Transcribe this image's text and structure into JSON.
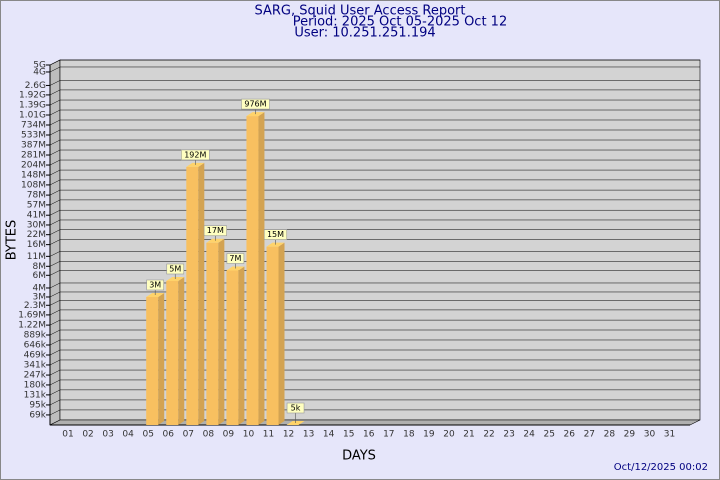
{
  "chart_data": {
    "type": "bar3d",
    "title": "SARG, Squid User Access Report",
    "subtitle": "Period: 2025 Oct 05-2025 Oct 12",
    "user": "User: 10.251.251.194",
    "xlabel": "DAYS",
    "ylabel": "BYTES",
    "footer": "Oct/12/2025 00:02",
    "categories": [
      "01",
      "02",
      "03",
      "04",
      "05",
      "06",
      "07",
      "08",
      "09",
      "10",
      "11",
      "12",
      "13",
      "14",
      "15",
      "16",
      "17",
      "18",
      "19",
      "20",
      "21",
      "22",
      "23",
      "24",
      "25",
      "26",
      "27",
      "28",
      "29",
      "30",
      "31"
    ],
    "values": [
      null,
      null,
      null,
      null,
      3000000,
      5000000,
      192000000,
      17000000,
      7000000,
      976000000,
      15000000,
      5000,
      null,
      null,
      null,
      null,
      null,
      null,
      null,
      null,
      null,
      null,
      null,
      null,
      null,
      null,
      null,
      null,
      null,
      null,
      null
    ],
    "value_labels": [
      null,
      null,
      null,
      null,
      "3M",
      "5M",
      "192M",
      "17M",
      "7M",
      "976M",
      "15M",
      "5k",
      null,
      null,
      null,
      null,
      null,
      null,
      null,
      null,
      null,
      null,
      null,
      null,
      null,
      null,
      null,
      null,
      null,
      null,
      null
    ],
    "color": "#f8c060",
    "log_scale": true,
    "grid": true,
    "ylim": [
      50000,
      5000000000
    ],
    "yticks": [
      {
        "value": 69000,
        "label": "69k"
      },
      {
        "value": 95000,
        "label": "95k"
      },
      {
        "value": 131000,
        "label": "131k"
      },
      {
        "value": 180000,
        "label": "180k"
      },
      {
        "value": 247000,
        "label": "247k"
      },
      {
        "value": 341000,
        "label": "341k"
      },
      {
        "value": 469000,
        "label": "469k"
      },
      {
        "value": 646000,
        "label": "646k"
      },
      {
        "value": 889000,
        "label": "889k"
      },
      {
        "value": 1220000,
        "label": "1.22M"
      },
      {
        "value": 1690000,
        "label": "1.69M"
      },
      {
        "value": 2300000,
        "label": "2.3M"
      },
      {
        "value": 3000000,
        "label": "3M"
      },
      {
        "value": 4000000,
        "label": "4M"
      },
      {
        "value": 6000000,
        "label": "6M"
      },
      {
        "value": 8000000,
        "label": "8M"
      },
      {
        "value": 11000000,
        "label": "11M"
      },
      {
        "value": 16000000,
        "label": "16M"
      },
      {
        "value": 22000000,
        "label": "22M"
      },
      {
        "value": 30000000,
        "label": "30M"
      },
      {
        "value": 41000000,
        "label": "41M"
      },
      {
        "value": 57000000,
        "label": "57M"
      },
      {
        "value": 78000000,
        "label": "78M"
      },
      {
        "value": 108000000,
        "label": "108M"
      },
      {
        "value": 148000000,
        "label": "148M"
      },
      {
        "value": 204000000,
        "label": "204M"
      },
      {
        "value": 281000000,
        "label": "281M"
      },
      {
        "value": 387000000,
        "label": "387M"
      },
      {
        "value": 533000000,
        "label": "533M"
      },
      {
        "value": 734000000,
        "label": "734M"
      },
      {
        "value": 1010000000,
        "label": "1.01G"
      },
      {
        "value": 1390000000,
        "label": "1.39G"
      },
      {
        "value": 1920000000,
        "label": "1.92G"
      },
      {
        "value": 2600000000,
        "label": "2.6G"
      },
      {
        "value": 4000000000,
        "label": "4G"
      },
      {
        "value": 5000000000,
        "label": "5G"
      }
    ]
  }
}
